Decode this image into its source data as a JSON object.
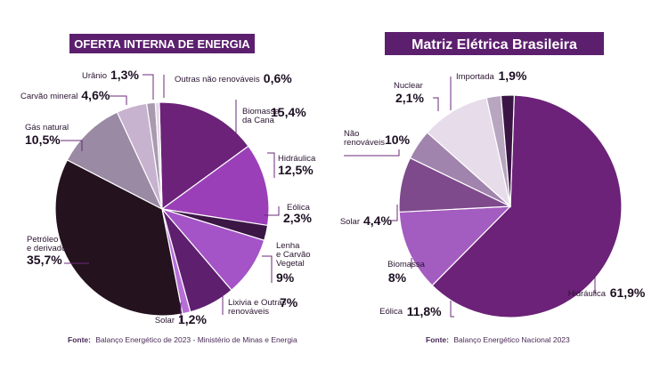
{
  "chart_data": [
    {
      "type": "pie",
      "title": "OFERTA INTERNA DE ENERGIA",
      "source_label": "Fonte:",
      "source_text": "Balanço Energético de 2023 - Ministério de Minas e Energia",
      "slices": [
        {
          "name": "Biomassa da Cana",
          "value": 15.4,
          "display": "15,4%",
          "color": "#6b2278"
        },
        {
          "name": "Hidráulica",
          "value": 12.5,
          "display": "12,5%",
          "color": "#9b3fb8"
        },
        {
          "name": "Eólica",
          "value": 2.3,
          "display": "2,3%",
          "color": "#3c1746"
        },
        {
          "name": "Lenha e Carvão Vegetal",
          "value": 9,
          "display": "9%",
          "color": "#a454c6"
        },
        {
          "name": "Lixivia e Outras renováveis",
          "value": 7,
          "display": "7%",
          "color": "#5e1f6e"
        },
        {
          "name": "Solar",
          "value": 1.2,
          "display": "1,2%",
          "color": "#b76fd8"
        },
        {
          "name": "Petróleo e derivados",
          "value": 35.7,
          "display": "35,7%",
          "color": "#24121f"
        },
        {
          "name": "Gás natural",
          "value": 10.5,
          "display": "10,5%",
          "color": "#9a8aa3"
        },
        {
          "name": "Carvão mineral",
          "value": 4.6,
          "display": "4,6%",
          "color": "#c7b2cf"
        },
        {
          "name": "Urânio",
          "value": 1.3,
          "display": "1,3%",
          "color": "#a99ab0"
        },
        {
          "name": "Outras não renováveis",
          "value": 0.6,
          "display": "0,6%",
          "color": "#e3d6e8"
        }
      ]
    },
    {
      "type": "pie",
      "title": "Matriz Elétrica Brasileira",
      "source_label": "Fonte:",
      "source_text": "Balanço Energético Nacional 2023",
      "slices": [
        {
          "name": "Hidráulica",
          "value": 61.9,
          "display": "61,9%",
          "color": "#6b2278"
        },
        {
          "name": "Eólica",
          "value": 11.8,
          "display": "11,8%",
          "color": "#a35cc0"
        },
        {
          "name": "Biomassa",
          "value": 8,
          "display": "8%",
          "color": "#7e4a8c"
        },
        {
          "name": "Solar",
          "value": 4.4,
          "display": "4,4%",
          "color": "#a184ad"
        },
        {
          "name": "Não renováveis",
          "value": 10,
          "display": "10%",
          "color": "#e6dcea"
        },
        {
          "name": "Nuclear",
          "value": 2.1,
          "display": "2,1%",
          "color": "#b8a6c0"
        },
        {
          "name": "Importada",
          "value": 1.9,
          "display": "1,9%",
          "color": "#3a1544"
        }
      ]
    }
  ],
  "colors": {
    "title_bg": "#5c1f6e",
    "leader": "#6b2a7a"
  }
}
